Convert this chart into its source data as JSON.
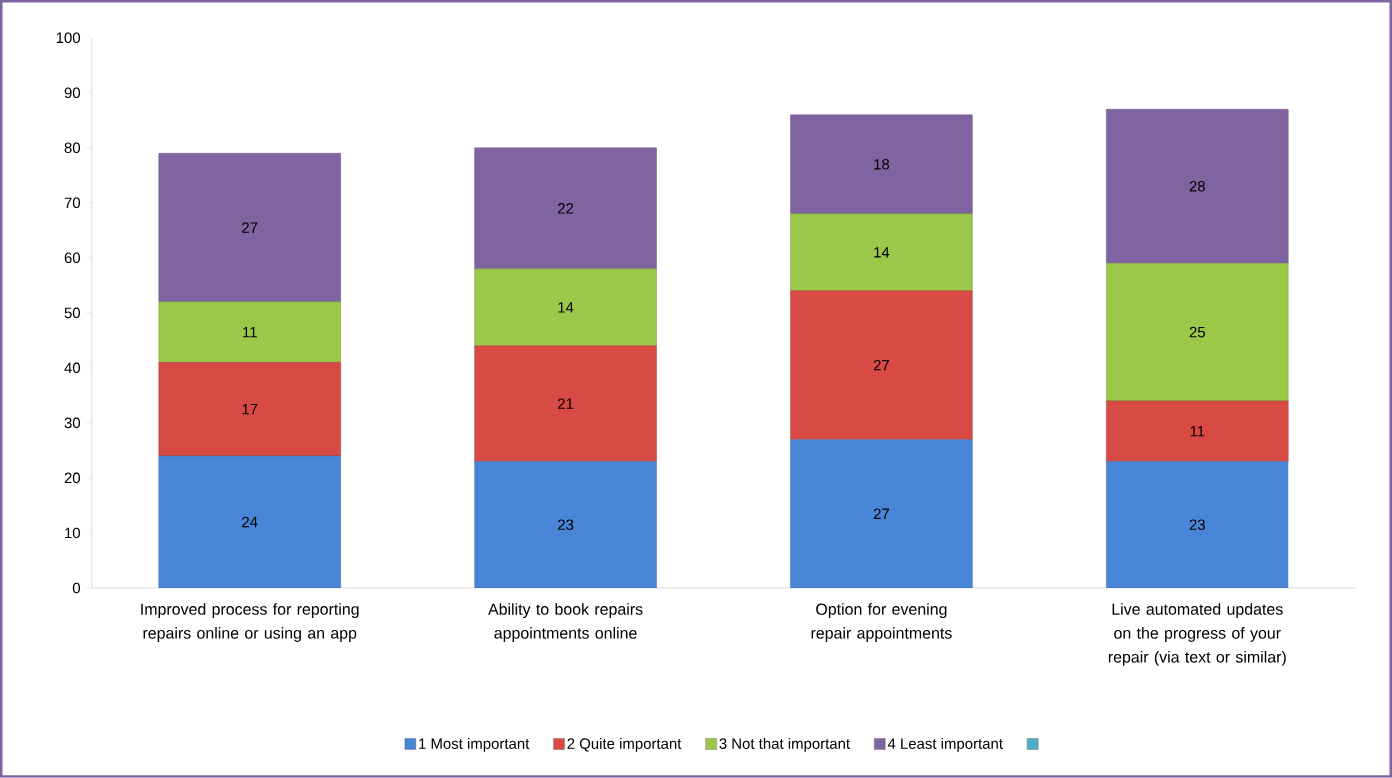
{
  "chart_data": {
    "type": "bar",
    "stacked": true,
    "data_labels": true,
    "legend": "bottom",
    "grid": false,
    "categories": [
      "Improved process for reporting repairs online or using an app",
      "Ability to book repairs appointments online",
      "Option for evening repair appointments",
      "Live automated updates on the progress of your repair (via text or similar)"
    ],
    "series": [
      {
        "name": "1 Most important",
        "color": "#4a86d8",
        "values": [
          24,
          23,
          27,
          23
        ]
      },
      {
        "name": "2 Quite important",
        "color": "#d84a44",
        "values": [
          17,
          21,
          27,
          11
        ]
      },
      {
        "name": "3 Not that important",
        "color": "#9cc84a",
        "values": [
          11,
          14,
          14,
          25
        ]
      },
      {
        "name": "4 Least important",
        "color": "#8064a2",
        "values": [
          27,
          22,
          18,
          28
        ]
      },
      {
        "color": "#4bacc6",
        "values": [
          null,
          null,
          null,
          null
        ]
      }
    ],
    "ylim": [
      0,
      100
    ],
    "yticks": [
      0,
      10,
      20,
      30,
      40,
      50,
      60,
      70,
      80,
      90,
      100
    ]
  }
}
